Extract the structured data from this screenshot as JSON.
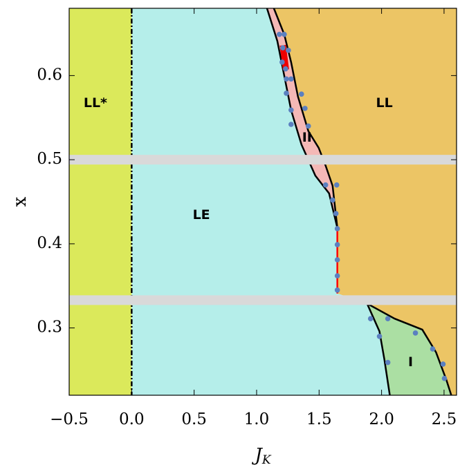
{
  "chart_data": {
    "type": "phase",
    "xlabel": {
      "text": "J",
      "subscript": "K"
    },
    "ylabel": "x",
    "xlim": [
      -0.5,
      2.6
    ],
    "ylim": [
      0.22,
      0.68
    ],
    "xticks": [
      {
        "value": -0.5,
        "label": "−0.5"
      },
      {
        "value": 0,
        "label": "0.0"
      },
      0.5,
      {
        "value": 1,
        "label": "1.0"
      },
      1.5,
      {
        "value": 2,
        "label": "2.0"
      },
      2.5
    ],
    "yticks": [
      0.3,
      0.4,
      0.5,
      0.6
    ],
    "regions": [
      {
        "name": "LL*",
        "color": "#dbe95b",
        "label_x": -0.29,
        "label_y": 0.567,
        "x": [
          -0.5,
          0,
          0,
          -0.5
        ],
        "y": [
          0.68,
          0.68,
          0.22,
          0.22
        ]
      },
      {
        "name": "LL",
        "color": "#ecc565",
        "label_x": 2.022,
        "label_y": 0.567,
        "x": [
          1.083,
          2.6,
          2.6,
          2.558,
          2.519,
          2.436,
          2.326,
          2.105,
          1.884,
          1.646,
          1.646,
          1.58,
          1.47,
          1.359,
          1.276,
          1.221,
          1.166
        ],
        "y": [
          0.68,
          0.68,
          0.22,
          0.22,
          0.238,
          0.271,
          0.298,
          0.311,
          0.329,
          0.341,
          0.419,
          0.46,
          0.481,
          0.518,
          0.559,
          0.6,
          0.641
        ]
      },
      {
        "name": "LE",
        "color": "#b5eeea",
        "label_x": 0.558,
        "label_y": 0.434,
        "x": [
          0,
          1.083,
          1.166,
          1.221,
          1.276,
          1.359,
          1.47,
          1.58,
          1.646,
          1.646,
          1.884,
          1.983,
          2.022,
          2.066,
          0
        ],
        "y": [
          0.68,
          0.68,
          0.641,
          0.6,
          0.559,
          0.518,
          0.481,
          0.46,
          0.419,
          0.341,
          0.329,
          0.296,
          0.263,
          0.22,
          0.22
        ]
      },
      {
        "name": "II",
        "color": "#f4b8b6",
        "label_x": 1.403,
        "label_y": 0.526,
        "x": [
          1.083,
          1.166,
          1.221,
          1.276,
          1.359,
          1.47,
          1.58,
          1.646,
          1.608,
          1.552,
          1.497,
          1.414,
          1.331,
          1.276,
          1.221,
          1.138
        ],
        "y": [
          0.68,
          0.641,
          0.6,
          0.559,
          0.518,
          0.481,
          0.46,
          0.419,
          0.469,
          0.493,
          0.514,
          0.534,
          0.575,
          0.616,
          0.649,
          0.68
        ]
      },
      {
        "name": "I",
        "color": "#abdfa3",
        "label_x": 2.232,
        "label_y": 0.259,
        "x": [
          1.884,
          1.983,
          2.022,
          2.066,
          2.558,
          2.519,
          2.436,
          2.326,
          2.105
        ],
        "y": [
          0.329,
          0.296,
          0.263,
          0.22,
          0.22,
          0.238,
          0.271,
          0.298,
          0.311
        ]
      }
    ],
    "boundaries": [
      {
        "color": "#000000",
        "x": [
          1.083,
          1.166,
          1.221,
          1.276,
          1.359,
          1.47,
          1.58,
          1.646
        ],
        "y": [
          0.68,
          0.641,
          0.6,
          0.559,
          0.518,
          0.481,
          0.46,
          0.419
        ]
      },
      {
        "color": "#000000",
        "x": [
          1.138,
          1.221,
          1.276,
          1.331,
          1.414,
          1.497,
          1.552,
          1.608,
          1.646
        ],
        "y": [
          0.68,
          0.649,
          0.616,
          0.575,
          0.534,
          0.514,
          0.493,
          0.469,
          0.419
        ]
      },
      {
        "color": "#000000",
        "x": [
          1.884,
          1.983,
          2.022,
          2.066
        ],
        "y": [
          0.329,
          0.296,
          0.263,
          0.22
        ]
      },
      {
        "color": "#000000",
        "x": [
          1.884,
          2.105,
          2.326,
          2.436,
          2.519,
          2.558
        ],
        "y": [
          0.329,
          0.311,
          0.298,
          0.271,
          0.238,
          0.22
        ]
      },
      {
        "color": "#ff0000",
        "x": [
          1.646,
          1.646
        ],
        "y": [
          0.419,
          0.341
        ]
      },
      {
        "color": "#ee0000",
        "x": [
          1.21,
          1.235
        ],
        "y": [
          0.636,
          0.607
        ],
        "thick": true
      },
      {
        "color": "#000000",
        "x": [
          0,
          0
        ],
        "y": [
          0.68,
          0.22
        ],
        "dashed": true
      }
    ],
    "hbands": [
      0.5,
      0.333
    ],
    "band_color": "#d9d9d9",
    "points": {
      "color": "#5b80c0",
      "x": [
        1.182,
        1.221,
        1.21,
        1.254,
        1.204,
        1.232,
        1.238,
        1.276,
        1.238,
        1.359,
        1.276,
        1.387,
        1.276,
        1.414,
        1.552,
        1.641,
        1.608,
        1.635,
        1.646,
        1.646,
        1.646,
        1.646,
        1.646,
        1.912,
        2.05,
        1.983,
        2.271,
        2.05,
        2.409,
        2.492,
        2.503
      ],
      "y": [
        0.649,
        0.649,
        0.633,
        0.63,
        0.616,
        0.608,
        0.596,
        0.596,
        0.579,
        0.578,
        0.559,
        0.561,
        0.542,
        0.54,
        0.47,
        0.47,
        0.452,
        0.436,
        0.418,
        0.399,
        0.381,
        0.362,
        0.345,
        0.311,
        0.311,
        0.29,
        0.294,
        0.259,
        0.275,
        0.257,
        0.24
      ]
    }
  }
}
